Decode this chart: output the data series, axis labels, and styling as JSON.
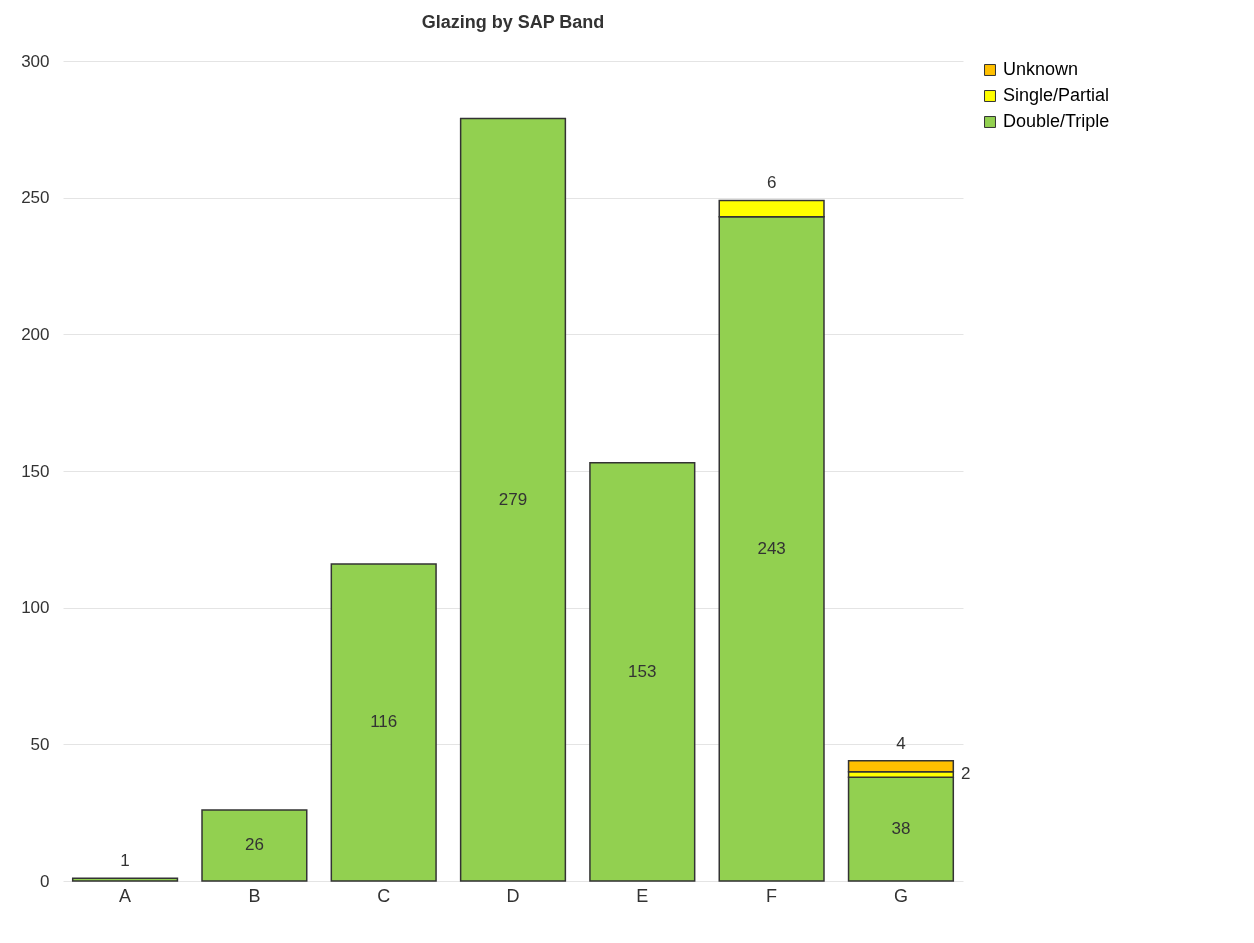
{
  "chart_data": {
    "type": "bar",
    "title": "Glazing by SAP Band",
    "stacked": true,
    "categories": [
      "A",
      "B",
      "C",
      "D",
      "E",
      "F",
      "G"
    ],
    "series": [
      {
        "name": "Double/Triple",
        "color": "#92d050",
        "values": [
          1,
          26,
          116,
          279,
          153,
          243,
          38
        ]
      },
      {
        "name": "Single/Partial",
        "color": "#ffff00",
        "values": [
          null,
          null,
          null,
          null,
          null,
          6,
          2
        ]
      },
      {
        "name": "Unknown",
        "color": "#ffc000",
        "values": [
          null,
          null,
          null,
          null,
          null,
          null,
          4
        ]
      }
    ],
    "ylim": [
      0,
      300
    ],
    "yticks": [
      0,
      50,
      100,
      150,
      200,
      250,
      300
    ],
    "grid": "y",
    "legend": "right",
    "data_labels": true
  }
}
